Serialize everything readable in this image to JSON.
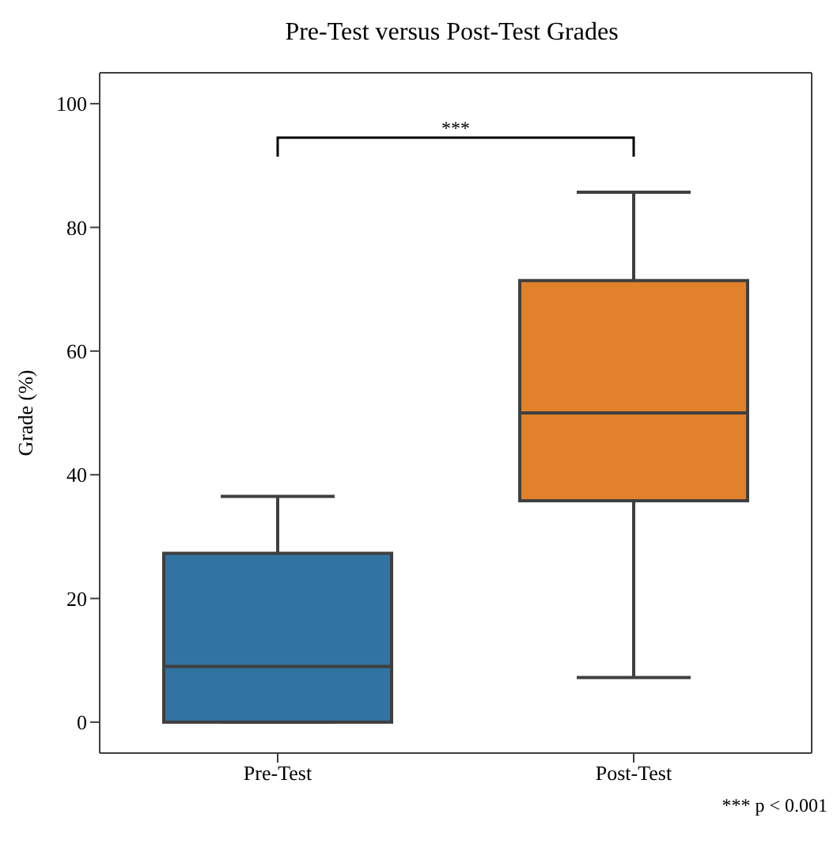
{
  "chart_data": {
    "type": "box",
    "title": "Pre-Test versus Post-Test Grades",
    "ylabel": "Grade (%)",
    "categories": [
      "Pre-Test",
      "Post-Test"
    ],
    "colors": [
      "#3274a1",
      "#e1812c"
    ],
    "boxes": [
      {
        "low": 0,
        "q1": 0,
        "median": 9,
        "q3": 27.3,
        "high": 36.5
      },
      {
        "low": 7.2,
        "q1": 35.8,
        "median": 50,
        "q3": 71.4,
        "high": 85.7
      }
    ],
    "ylim": [
      -5,
      105
    ],
    "yticks": [
      0,
      20,
      40,
      60,
      80,
      100
    ],
    "annotations": [
      "***",
      "*** p < 0.001"
    ]
  }
}
